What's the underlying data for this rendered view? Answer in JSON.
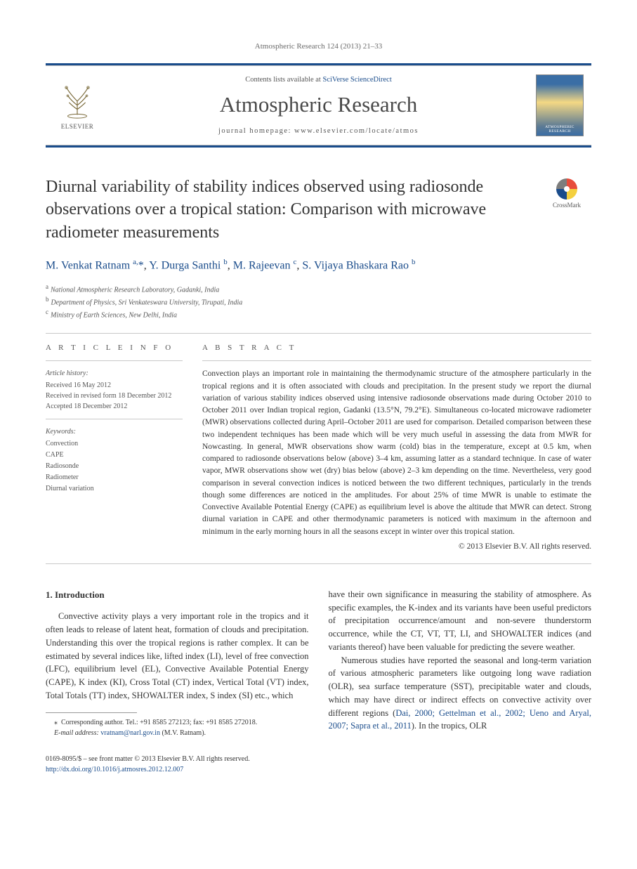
{
  "running_head": "Atmospheric Research 124 (2013) 21–33",
  "masthead": {
    "contents_prefix": "Contents lists available at ",
    "contents_link": "SciVerse ScienceDirect",
    "journal": "Atmospheric Research",
    "homepage_label": "journal homepage: ",
    "homepage_url": "www.elsevier.com/locate/atmos",
    "publisher": "ELSEVIER",
    "cover_label": "ATMOSPHERIC RESEARCH"
  },
  "title": "Diurnal variability of stability indices observed using radiosonde observations over a tropical station: Comparison with microwave radiometer measurements",
  "crossmark_label": "CrossMark",
  "authors_html": "M. Venkat Ratnam <sup>a,</sup><span class=\"star\">*</span>, Y. Durga Santhi <sup>b</sup>, M. Rajeevan <sup>c</sup>, S. Vijaya Bhaskara Rao <sup>b</sup>",
  "affiliations": [
    {
      "key": "a",
      "text": "National Atmospheric Research Laboratory, Gadanki, India"
    },
    {
      "key": "b",
      "text": "Department of Physics, Sri Venkateswara University, Tirupati, India"
    },
    {
      "key": "c",
      "text": "Ministry of Earth Sciences, New Delhi, India"
    }
  ],
  "article_info_label": "A R T I C L E   I N F O",
  "abstract_label": "A B S T R A C T",
  "history_label": "Article history:",
  "history": [
    "Received 16 May 2012",
    "Received in revised form 18 December 2012",
    "Accepted 18 December 2012"
  ],
  "keywords_label": "Keywords:",
  "keywords": [
    "Convection",
    "CAPE",
    "Radiosonde",
    "Radiometer",
    "Diurnal variation"
  ],
  "abstract": "Convection plays an important role in maintaining the thermodynamic structure of the atmosphere particularly in the tropical regions and it is often associated with clouds and precipitation. In the present study we report the diurnal variation of various stability indices observed using intensive radiosonde observations made during October 2010 to October 2011 over Indian tropical region, Gadanki (13.5°N, 79.2°E). Simultaneous co-located microwave radiometer (MWR) observations collected during April–October 2011 are used for comparison. Detailed comparison between these two independent techniques has been made which will be very much useful in assessing the data from MWR for Nowcasting. In general, MWR observations show warm (cold) bias in the temperature, except at 0.5 km, when compared to radiosonde observations below (above) 3–4 km, assuming latter as a standard technique. In case of water vapor, MWR observations show wet (dry) bias below (above) 2–3 km depending on the time. Nevertheless, very good comparison in several convection indices is noticed between the two different techniques, particularly in the trends though some differences are noticed in the amplitudes. For about 25% of time MWR is unable to estimate the Convective Available Potential Energy (CAPE) as equilibrium level is above the altitude that MWR can detect. Strong diurnal variation in CAPE and other thermodynamic parameters is noticed with maximum in the afternoon and minimum in the early morning hours in all the seasons except in winter over this tropical station.",
  "copyright": "© 2013 Elsevier B.V. All rights reserved.",
  "section1_heading": "1. Introduction",
  "col1_p1": "Convective activity plays a very important role in the tropics and it often leads to release of latent heat, formation of clouds and precipitation. Understanding this over the tropical regions is rather complex. It can be estimated by several indices like, lifted index (LI), level of free convection (LFC), equilibrium level (EL), Convective Available Potential Energy (CAPE), K index (KI), Cross Total (CT) index, Vertical Total (VT) index, Total Totals (TT) index, SHOWALTER index, S index (SI) etc., which",
  "col2_p1": "have their own significance in measuring the stability of atmosphere. As specific examples, the K-index and its variants have been useful predictors of precipitation occurrence/amount and non-severe thunderstorm occurrence, while the CT, VT, TT, LI, and SHOWALTER indices (and variants thereof) have been valuable for predicting the severe weather.",
  "col2_p2_pre": "Numerous studies have reported the seasonal and long-term variation of various atmospheric parameters like outgoing long wave radiation (OLR), sea surface temperature (SST), precipitable water and clouds, which may have direct or indirect effects on convective activity over different regions (",
  "col2_p2_cite": "Dai, 2000; Gettelman et al., 2002; Ueno and Aryal, 2007; Sapra et al., 2011",
  "col2_p2_post": "). In the tropics, OLR",
  "footnote_star": "⁎",
  "footnote_corr": "Corresponding author. Tel.: +91 8585 272123; fax: +91 8585 272018.",
  "footnote_email_label": "E-mail address: ",
  "footnote_email": "vratnam@narl.gov.in",
  "footnote_email_post": " (M.V. Ratnam).",
  "footer_line1": "0169-8095/$ – see front matter © 2013 Elsevier B.V. All rights reserved.",
  "footer_doi": "http://dx.doi.org/10.1016/j.atmosres.2012.12.007",
  "colors": {
    "link": "#1a4c8b",
    "rule": "#c8c8c8",
    "text": "#333333",
    "muted": "#555555"
  }
}
